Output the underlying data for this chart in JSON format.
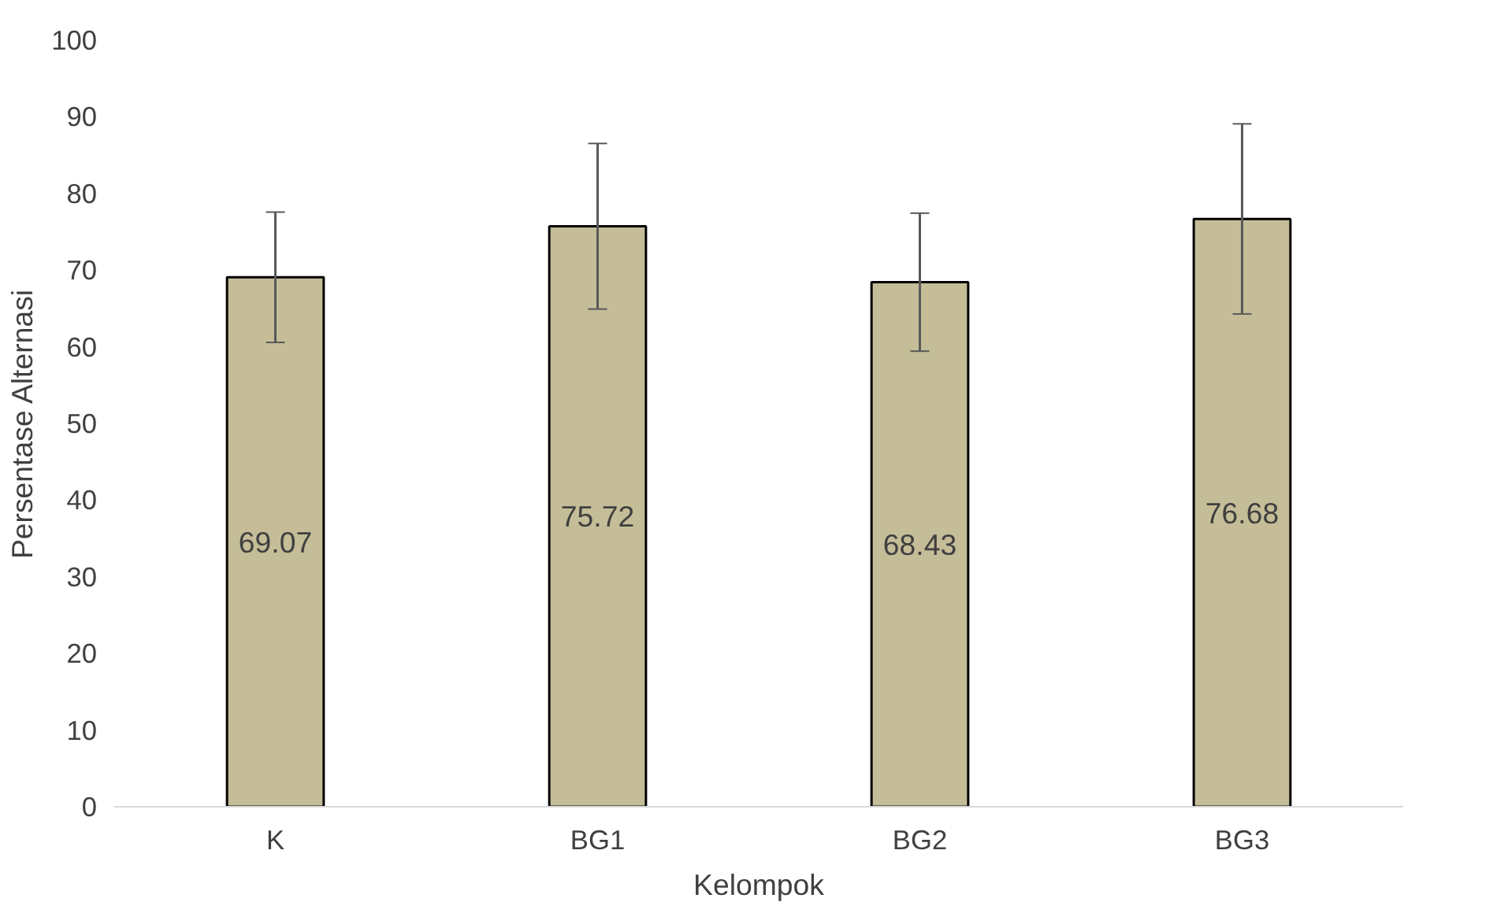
{
  "chart_data": {
    "type": "bar",
    "xlabel": "Kelompok",
    "ylabel": "Persentase Alternasi",
    "categories": [
      "K",
      "BG1",
      "BG2",
      "BG3"
    ],
    "values": [
      69.07,
      75.72,
      68.43,
      76.68
    ],
    "errors": [
      8.5,
      10.8,
      9.0,
      12.4
    ],
    "color": "#c4bd97",
    "data_labels": true,
    "grid": false,
    "ylim": [
      0,
      100
    ],
    "yticks": [
      0,
      10,
      20,
      30,
      40,
      50,
      60,
      70,
      80,
      90,
      100
    ]
  }
}
